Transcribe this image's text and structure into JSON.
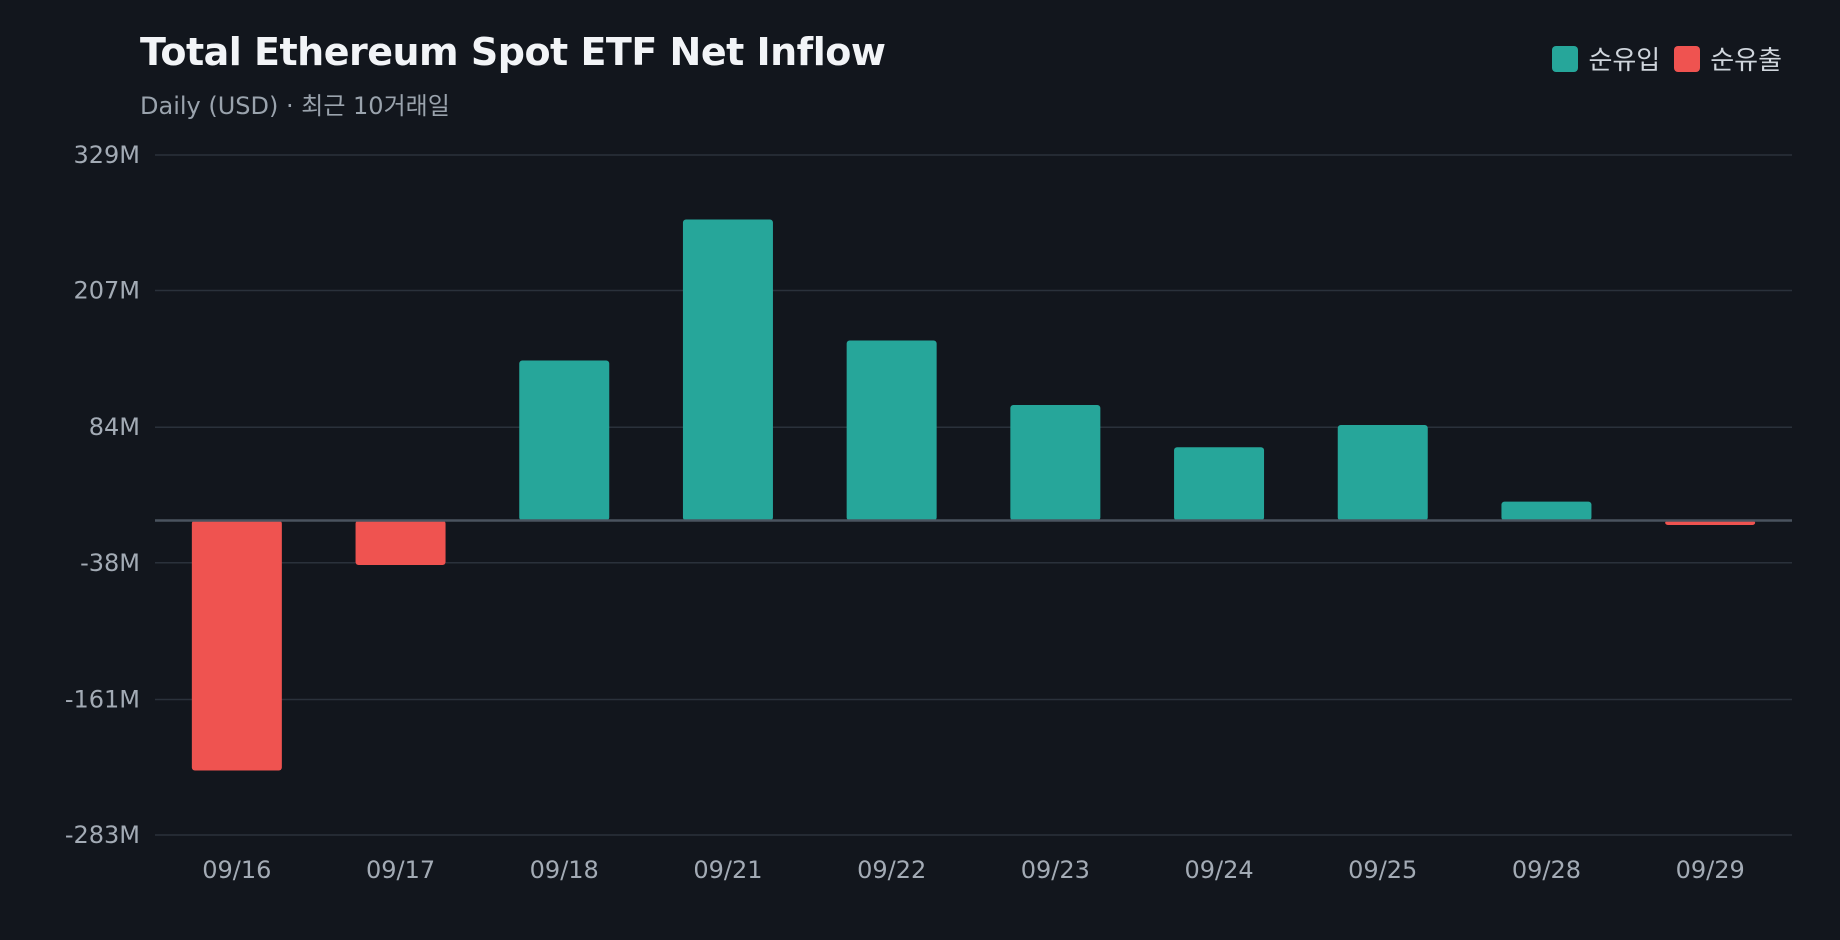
{
  "header": {
    "title": "Total Ethereum Spot ETF Net Inflow",
    "subtitle": "Daily (USD) · 최근 10거래일"
  },
  "legend": {
    "inflow_label": "순유입",
    "outflow_label": "순유출"
  },
  "colors": {
    "inflow": "#26a69a",
    "outflow": "#ef5350",
    "grid": "#2a313b",
    "zero_line": "#4a535f"
  },
  "chart_data": {
    "type": "bar",
    "title": "Total Ethereum Spot ETF Net Inflow",
    "subtitle": "Daily (USD) · 최근 10거래일",
    "categories": [
      "09/16",
      "09/17",
      "09/18",
      "09/21",
      "09/22",
      "09/23",
      "09/24",
      "09/25",
      "09/28",
      "09/29"
    ],
    "values": [
      -225,
      -40,
      144,
      271,
      162,
      104,
      66,
      86,
      17,
      -4
    ],
    "unit": "M USD",
    "ylim": [
      -283,
      329
    ],
    "yticks": [
      329,
      207,
      84,
      -38,
      -161,
      -283
    ],
    "ytick_labels": [
      "329M",
      "207M",
      "84M",
      "-38M",
      "-161M",
      "-283M"
    ],
    "grid": true,
    "legend_position": "top-right"
  }
}
